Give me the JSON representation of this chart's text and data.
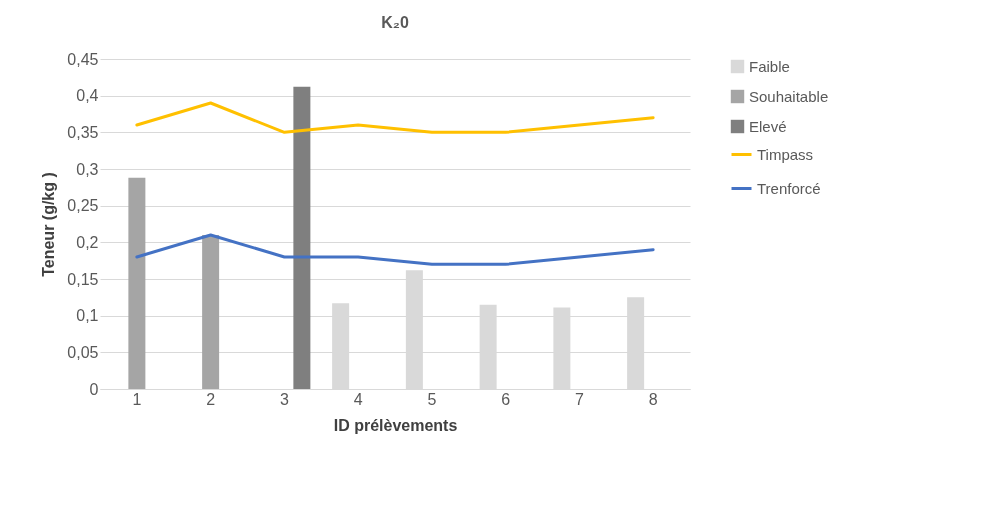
{
  "chart_data": {
    "type": "bar",
    "title": "K₂0",
    "xlabel": "ID prélèvements",
    "ylabel": "Teneur (g/kg )",
    "categories": [
      "1",
      "2",
      "3",
      "4",
      "5",
      "6",
      "7",
      "8"
    ],
    "series": [
      {
        "name": "Faible",
        "color": "#d9d9d9",
        "values": [
          null,
          null,
          null,
          0.117,
          0.162,
          0.115,
          0.111,
          0.125
        ]
      },
      {
        "name": "Souhaitable",
        "color": "#a5a5a5",
        "values": [
          0.288,
          0.21,
          null,
          null,
          null,
          null,
          null,
          null
        ]
      },
      {
        "name": "Elevé",
        "color": "#7f7f7f",
        "values": [
          null,
          null,
          0.412,
          null,
          null,
          null,
          null,
          null
        ]
      },
      {
        "name": "Timpass",
        "type": "line",
        "color": "#ffc000",
        "values": [
          0.36,
          0.39,
          0.35,
          0.36,
          0.35,
          0.35,
          0.36,
          0.37
        ]
      },
      {
        "name": "Trenforcé",
        "type": "line",
        "color": "#4472c4",
        "values": [
          0.18,
          0.21,
          0.18,
          0.18,
          0.17,
          0.17,
          0.18,
          0.19
        ]
      }
    ],
    "ylim": [
      0,
      0.45
    ],
    "yticks": [
      {
        "value": 0,
        "label": "0"
      },
      {
        "value": 0.05,
        "label": "0,05"
      },
      {
        "value": 0.1,
        "label": "0,1"
      },
      {
        "value": 0.15,
        "label": "0,15"
      },
      {
        "value": 0.2,
        "label": "0,2"
      },
      {
        "value": 0.25,
        "label": "0,25"
      },
      {
        "value": 0.3,
        "label": "0,3"
      },
      {
        "value": 0.35,
        "label": "0,35"
      },
      {
        "value": 0.4,
        "label": "0,4"
      },
      {
        "value": 0.45,
        "label": "0,45"
      }
    ],
    "grid": "y",
    "legend": "right"
  }
}
